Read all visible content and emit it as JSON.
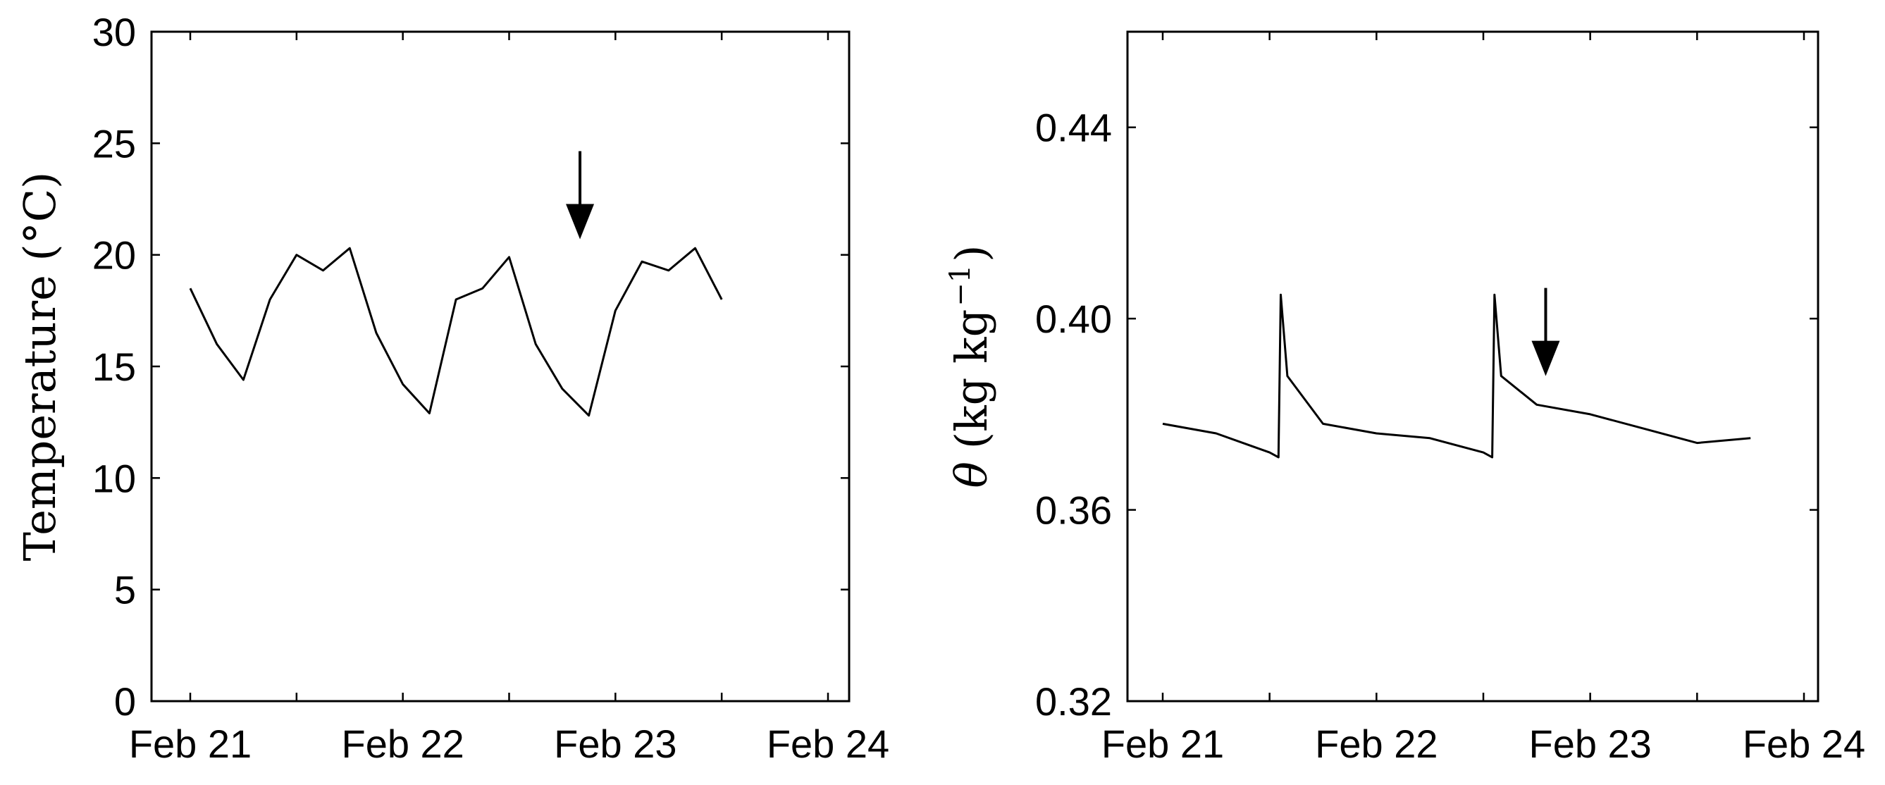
{
  "chart_data": [
    {
      "type": "line",
      "title": "",
      "xlabel": "",
      "ylabel": "Temperature (°C)",
      "ylim": [
        0,
        30
      ],
      "yticks": [
        0,
        5,
        10,
        15,
        20,
        25,
        30
      ],
      "xlim": [
        "Feb 21",
        "Feb 24"
      ],
      "xticks": [
        "Feb 21",
        "Feb 22",
        "Feb 23",
        "Feb 24"
      ],
      "grid": false,
      "series": [
        {
          "x": [
            "Feb 21 00:00",
            "Feb 21 03:00",
            "Feb 21 06:00",
            "Feb 21 09:00",
            "Feb 21 12:00",
            "Feb 21 15:00",
            "Feb 21 18:00",
            "Feb 21 21:00",
            "Feb 22 00:00",
            "Feb 22 03:00",
            "Feb 22 06:00",
            "Feb 22 09:00",
            "Feb 22 12:00",
            "Feb 22 15:00",
            "Feb 22 18:00",
            "Feb 22 21:00",
            "Feb 23 00:00",
            "Feb 23 03:00",
            "Feb 23 06:00",
            "Feb 23 09:00",
            "Feb 23 12:00",
            "Feb 23 15:00",
            "Feb 23 18:00",
            "Feb 23 21:00",
            "Feb 24 00:00"
          ],
          "y": [
            18.5,
            16.0,
            14.4,
            18.0,
            20.0,
            19.3,
            20.3,
            16.5,
            14.2,
            12.9,
            18.0,
            18.5,
            19.9,
            16.0,
            14.0,
            12.8,
            17.5,
            19.7,
            19.3,
            20.3,
            18.0,
            null,
            null,
            null,
            null
          ]
        }
      ],
      "annotations": [
        {
          "type": "arrow",
          "x": "Feb 22 20:00",
          "y": 20.7
        }
      ]
    },
    {
      "type": "line",
      "title": "",
      "xlabel": "",
      "ylabel": "θ (kg kg⁻¹)",
      "ylim": [
        0.32,
        0.46
      ],
      "yticks": [
        0.32,
        0.36,
        0.4,
        0.44
      ],
      "xlim": [
        "Feb 21",
        "Feb 24"
      ],
      "xticks": [
        "Feb 21",
        "Feb 22",
        "Feb 23",
        "Feb 24"
      ],
      "grid": false,
      "series": [
        {
          "x": [
            "Feb 21 00:00",
            "Feb 21 06:00",
            "Feb 21 12:00",
            "Feb 21 13:00",
            "Feb 21 13:15",
            "Feb 21 14:00",
            "Feb 21 18:00",
            "Feb 22 00:00",
            "Feb 22 06:00",
            "Feb 22 12:00",
            "Feb 22 13:00",
            "Feb 22 13:15",
            "Feb 22 14:00",
            "Feb 22 18:00",
            "Feb 23 00:00",
            "Feb 23 06:00",
            "Feb 23 12:00",
            "Feb 23 18:00",
            "Feb 24 00:00"
          ],
          "y": [
            0.378,
            0.376,
            0.372,
            0.371,
            0.405,
            0.388,
            0.378,
            0.376,
            0.375,
            0.372,
            0.371,
            0.405,
            0.388,
            0.382,
            0.38,
            0.377,
            0.374,
            0.375,
            null
          ]
        }
      ],
      "annotations": [
        {
          "type": "arrow",
          "x": "Feb 22 19:00",
          "y": 0.388
        }
      ]
    }
  ],
  "labels": {
    "left_ylabel_text": "Temperature (°C)",
    "right_ylabel_symbol": "θ",
    "right_ylabel_units": "(kg kg",
    "right_ylabel_exp": "−1",
    "right_ylabel_close": ")"
  }
}
